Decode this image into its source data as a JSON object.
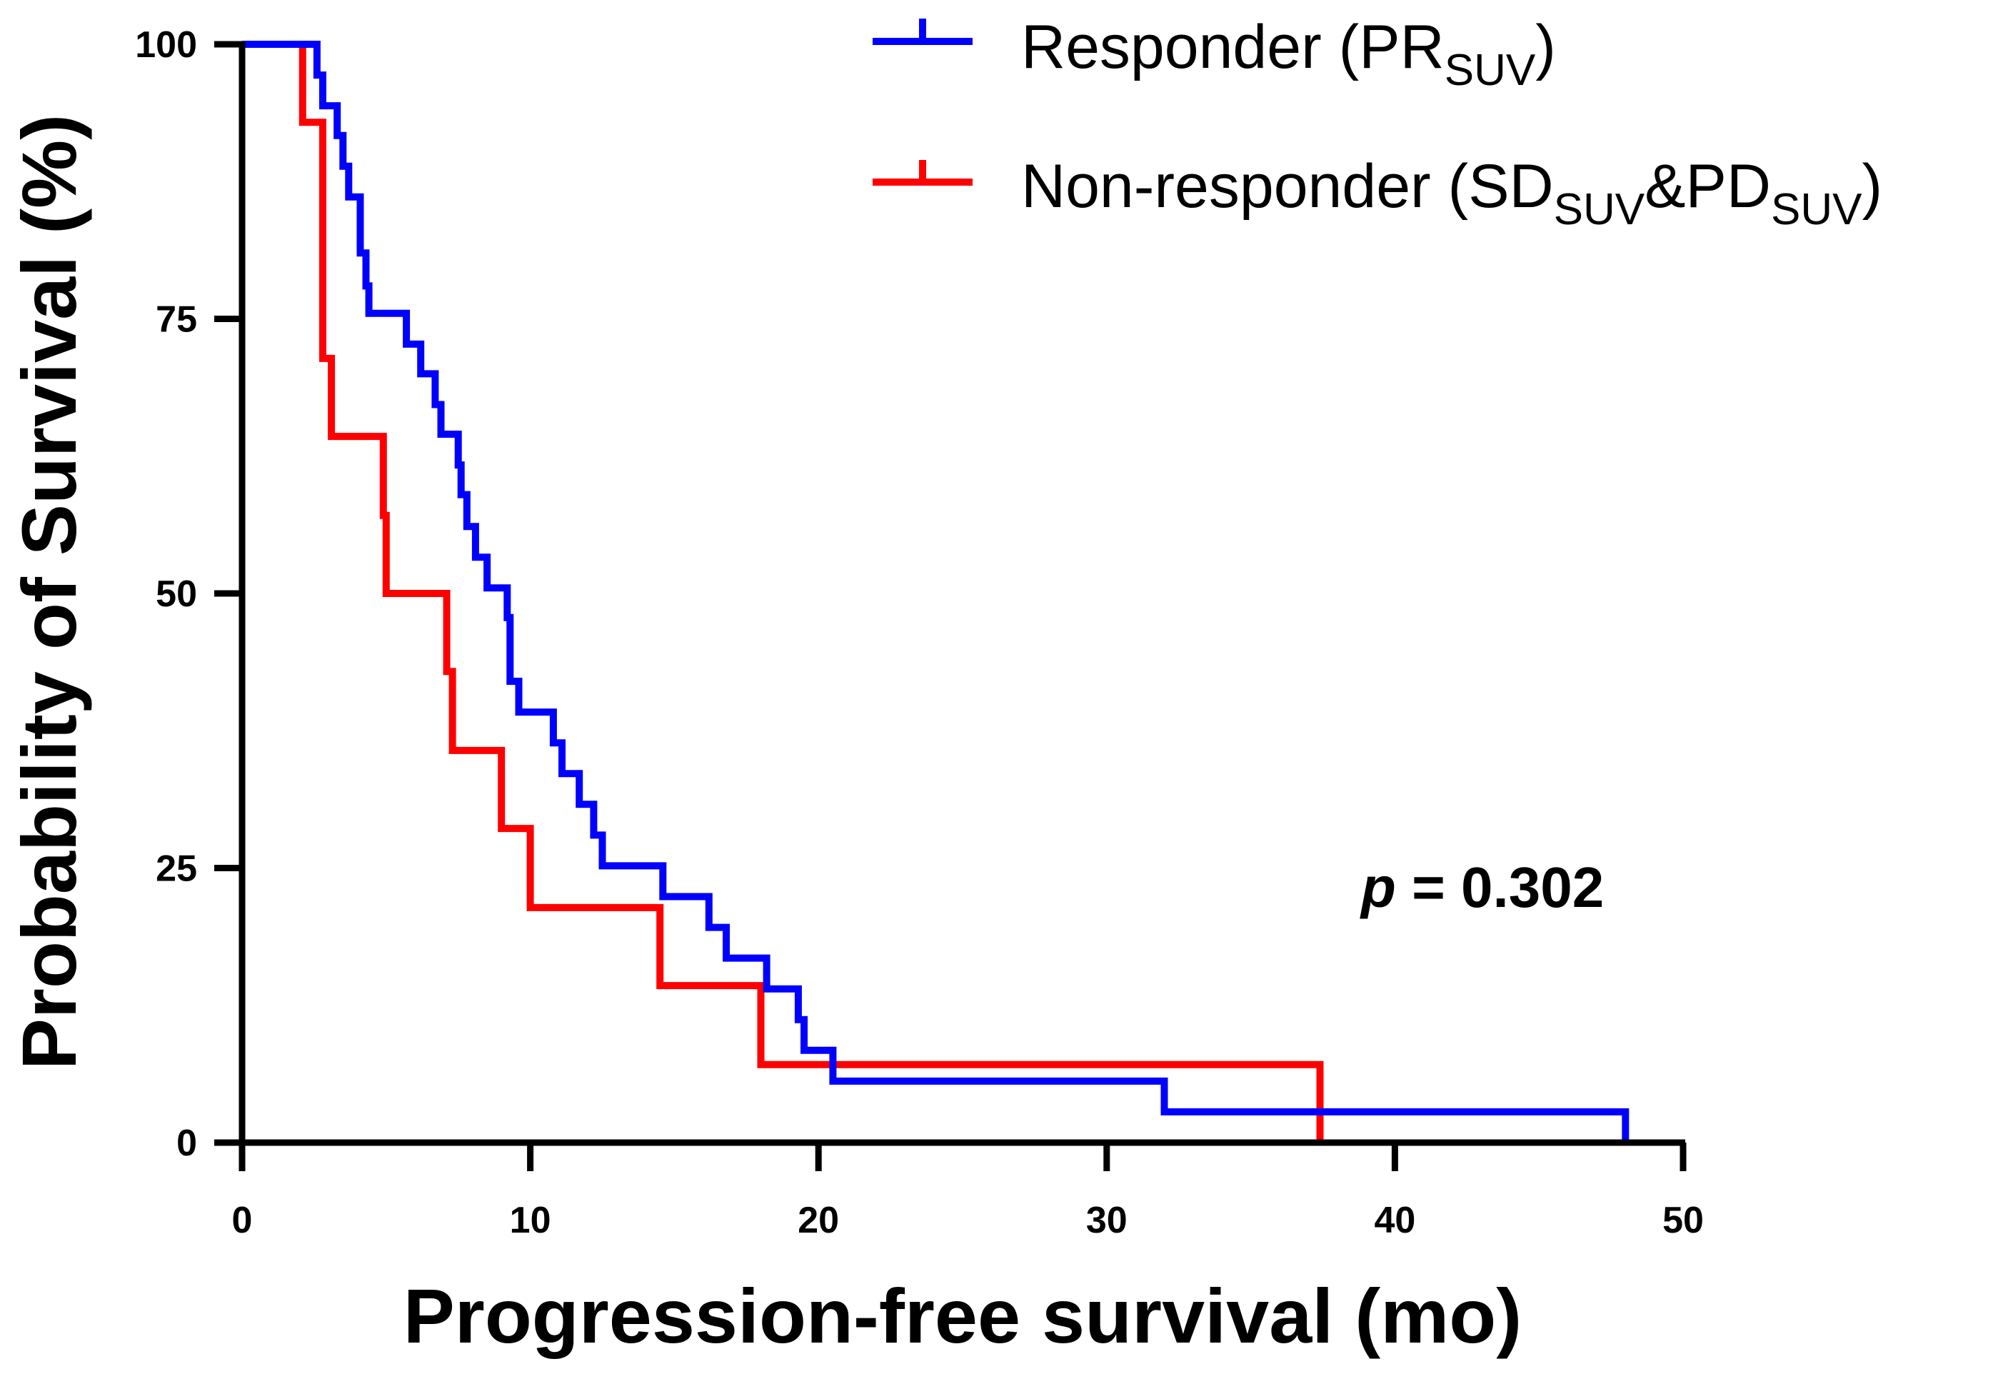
{
  "chart_data": {
    "type": "line",
    "subtype": "kaplan-meier-step",
    "xlabel": "Progression-free survival (mo)",
    "ylabel": "Probability of Survival (%)",
    "xlim": [
      0,
      50
    ],
    "ylim": [
      0,
      100
    ],
    "xticks": [
      "0",
      "10",
      "20",
      "30",
      "40",
      "50"
    ],
    "yticks": [
      "0",
      "25",
      "50",
      "75",
      "100"
    ],
    "xtick_values": [
      0,
      10,
      20,
      30,
      40,
      50
    ],
    "ytick_values": [
      0,
      25,
      50,
      75,
      100
    ],
    "grid": false,
    "legend_position": "top-right",
    "annotation": {
      "symbol": "p",
      "text": " = 0.302"
    },
    "series": [
      {
        "name": "Responder (PRSUV)",
        "legend_main": "Responder (PR",
        "legend_subs": [
          {
            "sub": "SUV",
            "after": ")"
          }
        ],
        "color": "#0000ff",
        "x": [
          0,
          2.6,
          2.7,
          2.8,
          3.3,
          3.4,
          3.5,
          3.6,
          3.7,
          3.8,
          4.1,
          4.3,
          4.4,
          5.7,
          5.8,
          6.2,
          6.3,
          6.7,
          6.8,
          6.9,
          7.3,
          7.5,
          7.6,
          7.8,
          8.1,
          8.5,
          9.1,
          9.2,
          9.3,
          9.6,
          10.8,
          11.1,
          11.7,
          12.2,
          12.5,
          14.6,
          16.2,
          16.8,
          18.2,
          19.3,
          19.5,
          20.5,
          32.0,
          48.0
        ],
        "y": [
          100,
          97.2,
          97.2,
          94.4,
          94.4,
          91.7,
          91.7,
          88.9,
          88.9,
          86.1,
          86.1,
          81.0,
          78.0,
          75.5,
          75.5,
          72.7,
          72.7,
          70.0,
          70.0,
          67.2,
          64.5,
          64.5,
          61.7,
          59.0,
          56.1,
          53.3,
          50.5,
          47.8,
          42.0,
          39.2,
          36.4,
          33.6,
          30.8,
          28.0,
          25.2,
          22.4,
          19.6,
          16.8,
          14.0,
          11.2,
          8.4,
          5.6,
          2.8,
          0
        ],
        "curve_points": [
          [
            0,
            100
          ],
          [
            2.6,
            100
          ],
          [
            2.6,
            97.2
          ],
          [
            2.8,
            97.2
          ],
          [
            2.8,
            94.4
          ],
          [
            3.3,
            94.4
          ],
          [
            3.3,
            91.7
          ],
          [
            3.5,
            91.7
          ],
          [
            3.5,
            88.9
          ],
          [
            3.7,
            88.9
          ],
          [
            3.7,
            86.1
          ],
          [
            4.1,
            86.1
          ],
          [
            4.1,
            81.0
          ],
          [
            4.3,
            81.0
          ],
          [
            4.3,
            78.0
          ],
          [
            4.4,
            78.0
          ],
          [
            4.4,
            75.5
          ],
          [
            5.7,
            75.5
          ],
          [
            5.7,
            72.7
          ],
          [
            6.2,
            72.7
          ],
          [
            6.2,
            70.0
          ],
          [
            6.7,
            70.0
          ],
          [
            6.7,
            67.2
          ],
          [
            6.9,
            67.2
          ],
          [
            6.9,
            64.5
          ],
          [
            7.5,
            64.5
          ],
          [
            7.5,
            61.7
          ],
          [
            7.6,
            61.7
          ],
          [
            7.6,
            59.0
          ],
          [
            7.8,
            59.0
          ],
          [
            7.8,
            56.1
          ],
          [
            8.1,
            56.1
          ],
          [
            8.1,
            53.3
          ],
          [
            8.5,
            53.3
          ],
          [
            8.5,
            50.5
          ],
          [
            9.2,
            50.5
          ],
          [
            9.2,
            47.8
          ],
          [
            9.3,
            47.8
          ],
          [
            9.3,
            42.0
          ],
          [
            9.6,
            42.0
          ],
          [
            9.6,
            39.2
          ],
          [
            10.8,
            39.2
          ],
          [
            10.8,
            36.4
          ],
          [
            11.1,
            36.4
          ],
          [
            11.1,
            33.6
          ],
          [
            11.7,
            33.6
          ],
          [
            11.7,
            30.8
          ],
          [
            12.2,
            30.8
          ],
          [
            12.2,
            28.0
          ],
          [
            12.5,
            28.0
          ],
          [
            12.5,
            25.2
          ],
          [
            14.6,
            25.2
          ],
          [
            14.6,
            22.4
          ],
          [
            16.2,
            22.4
          ],
          [
            16.2,
            19.6
          ],
          [
            16.8,
            19.6
          ],
          [
            16.8,
            16.8
          ],
          [
            18.2,
            16.8
          ],
          [
            18.2,
            14.0
          ],
          [
            19.3,
            14.0
          ],
          [
            19.3,
            11.2
          ],
          [
            19.5,
            11.2
          ],
          [
            19.5,
            8.4
          ],
          [
            20.5,
            8.4
          ],
          [
            20.5,
            5.6
          ],
          [
            32.0,
            5.6
          ],
          [
            32.0,
            2.8
          ],
          [
            48.0,
            2.8
          ],
          [
            48.0,
            0
          ]
        ],
        "censor_x": []
      },
      {
        "name": "Non-responder (SDSUV&PDSUV)",
        "legend_main": "Non-responder (SD",
        "legend_subs": [
          {
            "sub": "SUV",
            "after": "&PD"
          },
          {
            "sub": "SUV",
            "after": ")"
          }
        ],
        "color": "#ff0000",
        "curve_points": [
          [
            0,
            100
          ],
          [
            2.1,
            100
          ],
          [
            2.1,
            92.9
          ],
          [
            2.8,
            92.9
          ],
          [
            2.8,
            71.4
          ],
          [
            3.1,
            71.4
          ],
          [
            3.1,
            64.3
          ],
          [
            4.9,
            64.3
          ],
          [
            4.9,
            57.1
          ],
          [
            5.0,
            57.1
          ],
          [
            5.0,
            50.0
          ],
          [
            7.1,
            50.0
          ],
          [
            7.1,
            42.9
          ],
          [
            7.3,
            42.9
          ],
          [
            7.3,
            35.7
          ],
          [
            9.0,
            35.7
          ],
          [
            9.0,
            28.6
          ],
          [
            10.0,
            28.6
          ],
          [
            10.0,
            21.4
          ],
          [
            14.5,
            21.4
          ],
          [
            14.5,
            14.3
          ],
          [
            18.0,
            14.3
          ],
          [
            18.0,
            7.1
          ],
          [
            37.4,
            7.1
          ],
          [
            37.4,
            0
          ]
        ],
        "censor_x": []
      }
    ]
  }
}
